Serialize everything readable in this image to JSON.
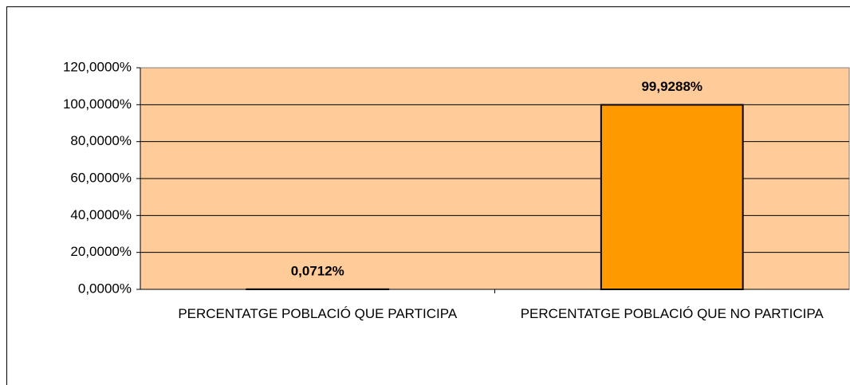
{
  "chart_data": {
    "type": "bar",
    "categories": [
      "PERCENTATGE POBLACIÓ QUE PARTICIPA",
      "PERCENTATGE POBLACIÓ QUE NO PARTICIPA"
    ],
    "values": [
      0.0712,
      99.9288
    ],
    "value_labels": [
      "0,0712%",
      "99,9288%"
    ],
    "color": "#ff9900",
    "plot_background": "#ffcc99",
    "ylim": [
      0,
      120
    ],
    "yticks": [
      {
        "value": 0,
        "label": "0,0000%"
      },
      {
        "value": 20,
        "label": "20,0000%"
      },
      {
        "value": 40,
        "label": "40,0000%"
      },
      {
        "value": 60,
        "label": "60,0000%"
      },
      {
        "value": 80,
        "label": "80,0000%"
      },
      {
        "value": 100,
        "label": "100,0000%"
      },
      {
        "value": 120,
        "label": "120,0000%"
      }
    ],
    "grid": true
  }
}
